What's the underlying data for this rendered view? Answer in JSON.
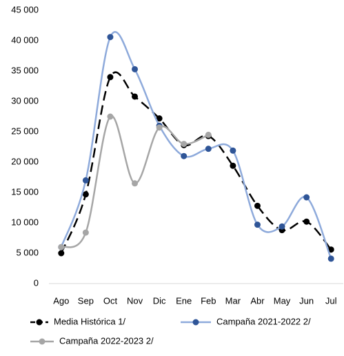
{
  "chart_data": {
    "type": "line",
    "categories": [
      "Ago",
      "Sep",
      "Oct",
      "Nov",
      "Dic",
      "Ene",
      "Feb",
      "Mar",
      "Abr",
      "May",
      "Jun",
      "Jul"
    ],
    "series": [
      {
        "name": "Media Histórica 1/",
        "color": "#000000",
        "marker_color": "#000000",
        "dashed": true,
        "values": [
          5000,
          14700,
          34000,
          30800,
          27200,
          22800,
          24300,
          19400,
          12800,
          8800,
          10200,
          5600
        ]
      },
      {
        "name": "Campaña 2021-2022 2/",
        "color": "#8eaadb",
        "marker_color": "#2f5597",
        "dashed": false,
        "values": [
          6000,
          17000,
          40600,
          35300,
          26000,
          21000,
          22200,
          21900,
          9700,
          9400,
          14200,
          4100
        ]
      },
      {
        "name": "Campaña 2022-2023 2/",
        "color": "#a6a6a6",
        "marker_color": "#a6a6a6",
        "dashed": false,
        "values": [
          6000,
          8400,
          27500,
          16500,
          25700,
          23000,
          24500,
          null,
          null,
          null,
          null,
          null
        ]
      }
    ],
    "ylim": [
      0,
      45000
    ],
    "yticks": [
      0,
      {
        "value": 5000,
        "label": "5 000"
      },
      {
        "value": 10000,
        "label": "10 000"
      },
      {
        "value": 15000,
        "label": "15 000"
      },
      {
        "value": 20000,
        "label": "20 000"
      },
      {
        "value": 25000,
        "label": "25 000"
      },
      {
        "value": 30000,
        "label": "30 000"
      },
      {
        "value": 35000,
        "label": "35 000"
      },
      {
        "value": 40000,
        "label": "40 000"
      },
      {
        "value": 45000,
        "label": "45 000"
      }
    ],
    "grid": false,
    "legend": "bottom"
  }
}
